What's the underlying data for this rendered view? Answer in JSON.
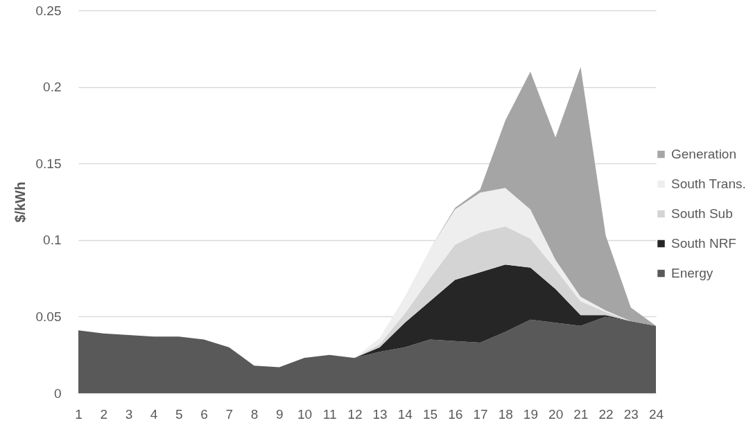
{
  "chart_data": {
    "type": "area",
    "stacked": true,
    "ylabel": "$/kWh",
    "x": [
      1,
      2,
      3,
      4,
      5,
      6,
      7,
      8,
      9,
      10,
      11,
      12,
      13,
      14,
      15,
      16,
      17,
      18,
      19,
      20,
      21,
      22,
      23,
      24
    ],
    "series": [
      {
        "name": "Energy",
        "color": "#595959",
        "values": [
          0.041,
          0.039,
          0.038,
          0.037,
          0.037,
          0.035,
          0.03,
          0.018,
          0.017,
          0.023,
          0.025,
          0.023,
          0.027,
          0.03,
          0.035,
          0.034,
          0.033,
          0.04,
          0.048,
          0.046,
          0.044,
          0.05,
          0.047,
          0.044
        ]
      },
      {
        "name": "South NRF",
        "color": "#262626",
        "values": [
          0,
          0,
          0,
          0,
          0,
          0,
          0,
          0,
          0,
          0,
          0,
          0,
          0.003,
          0.016,
          0.025,
          0.04,
          0.046,
          0.044,
          0.034,
          0.022,
          0.007,
          0.001,
          0,
          0
        ]
      },
      {
        "name": "South Sub",
        "color": "#d4d4d4",
        "values": [
          0,
          0,
          0,
          0,
          0,
          0,
          0,
          0,
          0,
          0,
          0,
          0,
          0.002,
          0.006,
          0.015,
          0.023,
          0.026,
          0.025,
          0.019,
          0.013,
          0.009,
          0.002,
          0,
          0
        ]
      },
      {
        "name": "South Trans.",
        "color": "#eeeeee",
        "values": [
          0,
          0,
          0,
          0,
          0,
          0,
          0,
          0,
          0,
          0,
          0,
          0,
          0.004,
          0.011,
          0.019,
          0.023,
          0.026,
          0.025,
          0.019,
          0.006,
          0.003,
          0.001,
          0,
          0
        ]
      },
      {
        "name": "Generation",
        "color": "#a5a5a5",
        "values": [
          0,
          0,
          0,
          0,
          0,
          0,
          0,
          0,
          0,
          0,
          0,
          0,
          0,
          0,
          0,
          0.001,
          0.002,
          0.044,
          0.09,
          0.08,
          0.15,
          0.049,
          0.009,
          0
        ]
      }
    ],
    "xlim": [
      1,
      24
    ],
    "xticks": [
      1,
      2,
      3,
      4,
      5,
      6,
      7,
      8,
      9,
      10,
      11,
      12,
      13,
      14,
      15,
      16,
      17,
      18,
      19,
      20,
      21,
      22,
      23,
      24
    ],
    "ylim": [
      0,
      0.25
    ],
    "yticks": [
      0,
      0.05,
      0.1,
      0.15,
      0.2,
      0.25
    ],
    "grid": "y",
    "legend": "right"
  }
}
